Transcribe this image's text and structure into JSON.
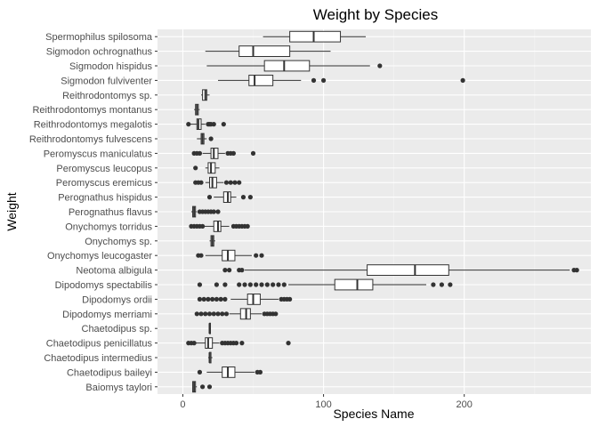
{
  "chart_data": {
    "type": "boxplot",
    "orientation": "horizontal",
    "title": "Weight by Species",
    "xlabel": "Species Name",
    "ylabel": "Weight",
    "xlim": [
      -18,
      290
    ],
    "x_ticks": [
      0,
      100,
      200
    ],
    "grid": true,
    "legend": "none",
    "colors": {
      "panel": "#ebebeb",
      "grid_major": "#ffffff",
      "grid_minor": "#f5f5f5",
      "box_fill": "#ffffff",
      "box_line": "#333333",
      "outlier": "#333333"
    },
    "species": [
      {
        "name": "Spermophilus spilosoma",
        "min": 57,
        "q1": 76,
        "median": 93,
        "q3": 112,
        "max": 130,
        "outliers": []
      },
      {
        "name": "Sigmodon ochrognathus",
        "min": 16,
        "q1": 40,
        "median": 50,
        "q3": 76,
        "max": 105,
        "outliers": []
      },
      {
        "name": "Sigmodon hispidus",
        "min": 17,
        "q1": 58,
        "median": 72,
        "q3": 90,
        "max": 133,
        "outliers": [
          140
        ]
      },
      {
        "name": "Sigmodon fulviventer",
        "min": 25,
        "q1": 47,
        "median": 51,
        "q3": 64,
        "max": 84,
        "outliers": [
          93,
          100,
          199
        ]
      },
      {
        "name": "Reithrodontomys sp.",
        "min": 13,
        "q1": 14,
        "median": 16,
        "q3": 17,
        "max": 19,
        "outliers": []
      },
      {
        "name": "Reithrodontomys montanus",
        "min": 8,
        "q1": 9,
        "median": 10,
        "q3": 11,
        "max": 12,
        "outliers": []
      },
      {
        "name": "Reithrodontomys megalotis",
        "min": 5,
        "q1": 10,
        "median": 11,
        "q3": 13,
        "max": 16,
        "outliers": [
          4,
          18,
          19,
          20,
          22,
          29
        ]
      },
      {
        "name": "Reithrodontomys fulvescens",
        "min": 10,
        "q1": 13,
        "median": 14,
        "q3": 15,
        "max": 17,
        "outliers": [
          20
        ]
      },
      {
        "name": "Peromyscus maniculatus",
        "min": 14,
        "q1": 20,
        "median": 22,
        "q3": 25,
        "max": 30,
        "outliers": [
          8,
          10,
          12,
          32,
          34,
          36,
          50
        ]
      },
      {
        "name": "Peromyscus leucopus",
        "min": 16,
        "q1": 18,
        "median": 20,
        "q3": 23,
        "max": 26,
        "outliers": [
          9
        ]
      },
      {
        "name": "Peromyscus eremicus",
        "min": 16,
        "q1": 19,
        "median": 21,
        "q3": 24,
        "max": 29,
        "outliers": [
          9,
          11,
          13,
          31,
          34,
          37,
          40
        ]
      },
      {
        "name": "Perognathus hispidus",
        "min": 22,
        "q1": 29,
        "median": 32,
        "q3": 34,
        "max": 38,
        "outliers": [
          19,
          43,
          48
        ]
      },
      {
        "name": "Perognathus flavus",
        "min": 6,
        "q1": 7,
        "median": 8,
        "q3": 9,
        "max": 10,
        "outliers": [
          12,
          14,
          16,
          18,
          20,
          22,
          25
        ]
      },
      {
        "name": "Onychomys torridus",
        "min": 15,
        "q1": 22,
        "median": 25,
        "q3": 27,
        "max": 33,
        "outliers": [
          6,
          8,
          10,
          12,
          14,
          36,
          38,
          40,
          42,
          44,
          46
        ]
      },
      {
        "name": "Onychomys sp.",
        "min": 19,
        "q1": 20,
        "median": 21,
        "q3": 22,
        "max": 23,
        "outliers": []
      },
      {
        "name": "Onychomys leucogaster",
        "min": 16,
        "q1": 28,
        "median": 32,
        "q3": 37,
        "max": 49,
        "outliers": [
          11,
          13,
          52,
          56
        ]
      },
      {
        "name": "Neotoma albigula",
        "min": 44,
        "q1": 131,
        "median": 165,
        "q3": 189,
        "max": 275,
        "outliers": [
          30,
          33,
          40,
          42,
          278,
          280
        ]
      },
      {
        "name": "Dipodomys spectabilis",
        "min": 75,
        "q1": 108,
        "median": 124,
        "q3": 135,
        "max": 173,
        "outliers": [
          12,
          24,
          30,
          40,
          44,
          48,
          52,
          56,
          60,
          64,
          68,
          72,
          178,
          184,
          190
        ]
      },
      {
        "name": "Dipodomys ordii",
        "min": 34,
        "q1": 46,
        "median": 50,
        "q3": 55,
        "max": 68,
        "outliers": [
          12,
          15,
          18,
          21,
          24,
          27,
          30,
          70,
          72,
          74,
          76
        ]
      },
      {
        "name": "Dipodomys merriami",
        "min": 33,
        "q1": 41,
        "median": 45,
        "q3": 48,
        "max": 56,
        "outliers": [
          10,
          13,
          16,
          19,
          22,
          25,
          28,
          31,
          58,
          60,
          62,
          64,
          66
        ]
      },
      {
        "name": "Chaetodipus sp.",
        "min": 19,
        "q1": 19,
        "median": 19,
        "q3": 19,
        "max": 19,
        "outliers": []
      },
      {
        "name": "Chaetodipus penicillatus",
        "min": 9,
        "q1": 16,
        "median": 18,
        "q3": 21,
        "max": 26,
        "outliers": [
          4,
          6,
          8,
          28,
          30,
          32,
          34,
          36,
          38,
          42,
          75
        ]
      },
      {
        "name": "Chaetodipus intermedius",
        "min": 18,
        "q1": 19,
        "median": 19,
        "q3": 20,
        "max": 21,
        "outliers": []
      },
      {
        "name": "Chaetodipus baileyi",
        "min": 17,
        "q1": 28,
        "median": 32,
        "q3": 37,
        "max": 51,
        "outliers": [
          12,
          53,
          55
        ]
      },
      {
        "name": "Baiomys taylori",
        "min": 7,
        "q1": 7,
        "median": 8,
        "q3": 9,
        "max": 10,
        "outliers": [
          14,
          19
        ]
      }
    ]
  }
}
